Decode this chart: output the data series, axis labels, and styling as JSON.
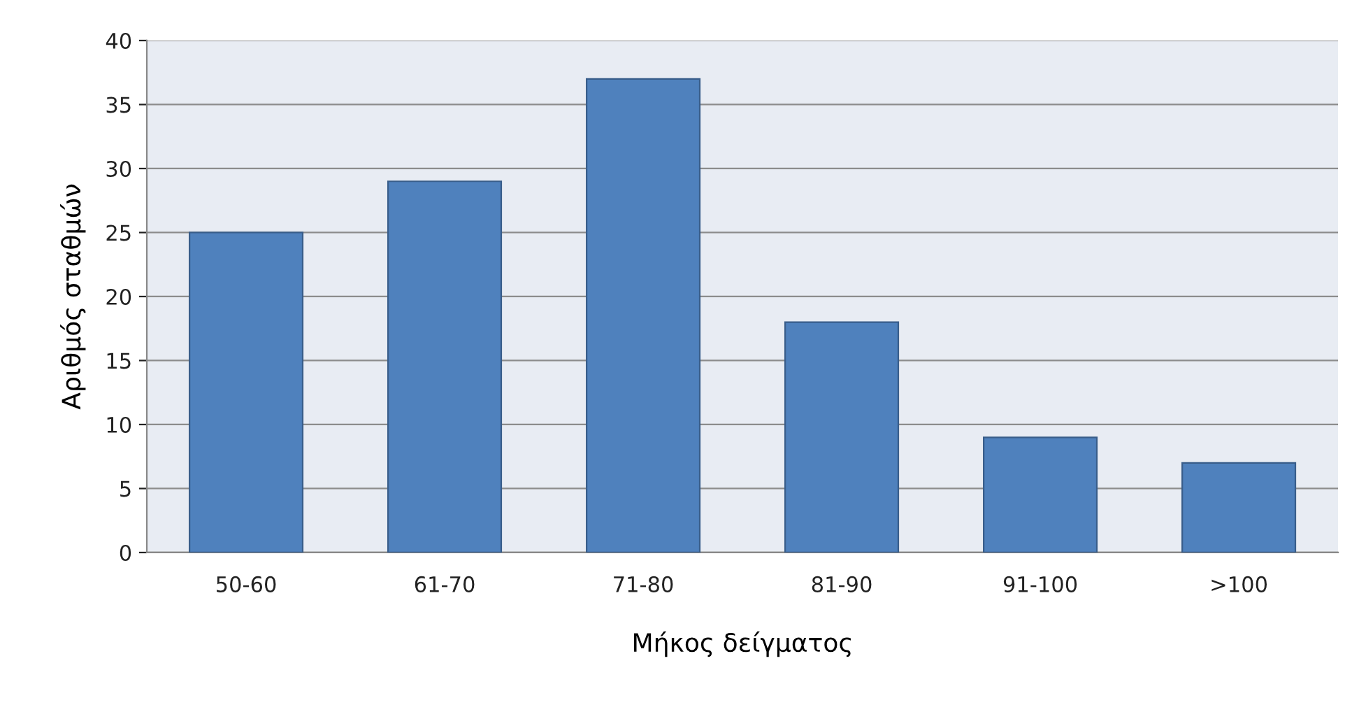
{
  "chart_data": {
    "type": "bar",
    "xlabel": "Μήκος δείγματος",
    "ylabel": "Αριθμός σταθμών",
    "categories": [
      "50-60",
      "61-70",
      "71-80",
      "81-90",
      "91-100",
      ">100"
    ],
    "values": [
      25,
      29,
      37,
      18,
      9,
      7
    ],
    "color": "#4f81bd",
    "ylim": [
      0,
      40
    ],
    "yticks": [
      0,
      5,
      10,
      15,
      20,
      25,
      30,
      35,
      40
    ],
    "grid": "y"
  }
}
